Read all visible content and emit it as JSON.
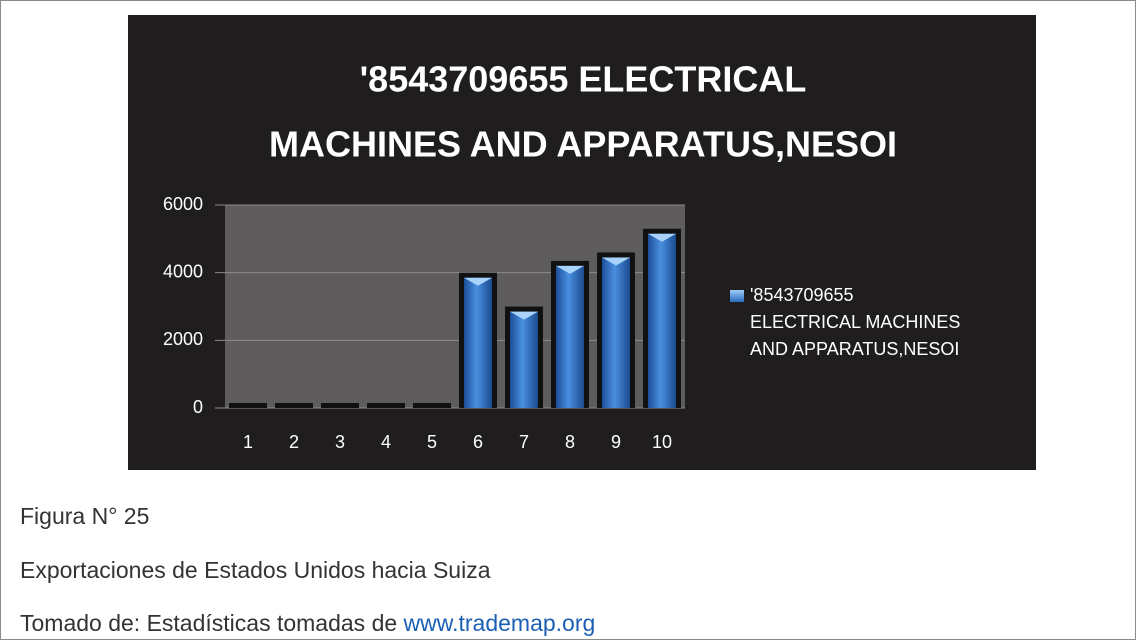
{
  "chart_data": {
    "type": "bar",
    "title": [
      "'8543709655  ELECTRICAL",
      "MACHINES AND APPARATUS,NESOI"
    ],
    "categories": [
      "1",
      "2",
      "3",
      "4",
      "5",
      "6",
      "7",
      "8",
      "9",
      "10"
    ],
    "series": [
      {
        "name": "'8543709655  ELECTRICAL MACHINES AND APPARATUS,NESOI",
        "color": "#2e6fc4",
        "values": [
          0,
          0,
          0,
          0,
          0,
          3850,
          2850,
          4200,
          4450,
          5150
        ]
      }
    ],
    "ylim": [
      0,
      6000
    ],
    "yticks": [
      0,
      2000,
      4000,
      6000
    ],
    "grid": true,
    "legend": "right"
  },
  "captions": {
    "figure": "Figura N° 25",
    "description": "Exportaciones de Estados Unidos hacia Suiza",
    "source": "Tomado de: Estadísticas tomadas de ",
    "link": "www.trademap.org"
  }
}
